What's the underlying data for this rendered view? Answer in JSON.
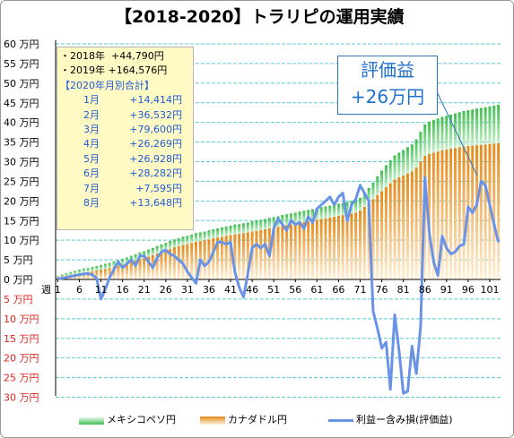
{
  "title": "【2018-2020】トラリピの運用実績",
  "info_box": {
    "line_2018": "・2018年  +44,790円",
    "line_2019": "・2019年 +164,576円",
    "heading": "【2020年月別合計】",
    "months": [
      {
        "label": "1月",
        "value": "+14,414円"
      },
      {
        "label": "2月",
        "value": "+36,532円"
      },
      {
        "label": "3月",
        "value": "+79,600円"
      },
      {
        "label": "4月",
        "value": "+26,269円"
      },
      {
        "label": "5月",
        "value": "+26,928円"
      },
      {
        "label": "6月",
        "value": "+28,282円"
      },
      {
        "label": "7月",
        "value": "+7,595円"
      },
      {
        "label": "8月",
        "value": "+13,648円"
      }
    ]
  },
  "callout": {
    "line1": "評価益",
    "line2": "+26万円"
  },
  "colors": {
    "mxn": "#3dbe4e",
    "cad": "#e58a1a",
    "line": "#6a93e6",
    "negative_label": "#e0201b",
    "grid": "#5ac8d8",
    "callout_text": "#1f6fd0"
  },
  "chart_data": {
    "type": "bar",
    "x_axis_label": "週",
    "x_tick_labels": [
      "1",
      "6",
      "11",
      "16",
      "21",
      "26",
      "31",
      "36",
      "41",
      "46",
      "51",
      "56",
      "61",
      "66",
      "71",
      "76",
      "81",
      "86",
      "91",
      "96",
      "101"
    ],
    "y_tick_labels": [
      "60 万円",
      "55 万円",
      "50 万円",
      "45 万円",
      "40 万円",
      "35 万円",
      "30 万円",
      "25 万円",
      "20 万円",
      "15 万円",
      "10 万円",
      "5 万円",
      "0 万円",
      "5 万円",
      "10 万円",
      "15 万円",
      "20 万円",
      "25 万円",
      "30 万円"
    ],
    "ylim": [
      -30,
      60
    ],
    "y_unit": "万円",
    "grid": true,
    "legend_position": "bottom",
    "x": [
      1,
      2,
      3,
      4,
      5,
      6,
      7,
      8,
      9,
      10,
      11,
      12,
      13,
      14,
      15,
      16,
      17,
      18,
      19,
      20,
      21,
      22,
      23,
      24,
      25,
      26,
      27,
      28,
      29,
      30,
      31,
      32,
      33,
      34,
      35,
      36,
      37,
      38,
      39,
      40,
      41,
      42,
      43,
      44,
      45,
      46,
      47,
      48,
      49,
      50,
      51,
      52,
      53,
      54,
      55,
      56,
      57,
      58,
      59,
      60,
      61,
      62,
      63,
      64,
      65,
      66,
      67,
      68,
      69,
      70,
      71,
      72,
      73,
      74,
      75,
      76,
      77,
      78,
      79,
      80,
      81,
      82,
      83,
      84,
      85,
      86,
      87,
      88,
      89,
      90,
      91,
      92,
      93,
      94,
      95,
      96,
      97,
      98,
      99,
      100,
      101,
      102,
      103
    ],
    "series": [
      {
        "name": "メキシコペソ円",
        "kind": "bar",
        "values": [
          0.3,
          0.5,
          0.6,
          0.7,
          0.8,
          0.9,
          1.0,
          1.0,
          1.1,
          1.1,
          1.2,
          1.3,
          1.3,
          1.4,
          1.4,
          1.5,
          1.5,
          1.6,
          1.6,
          1.7,
          1.7,
          1.8,
          1.8,
          1.9,
          1.9,
          1.9,
          2.0,
          2.0,
          2.0,
          2.1,
          2.1,
          2.1,
          2.2,
          2.2,
          2.2,
          2.3,
          2.3,
          2.3,
          2.4,
          2.4,
          2.4,
          2.5,
          2.5,
          2.5,
          2.5,
          2.6,
          2.6,
          2.6,
          2.6,
          2.7,
          2.7,
          2.7,
          2.8,
          2.8,
          2.8,
          2.8,
          2.9,
          2.9,
          2.9,
          2.9,
          3.0,
          3.0,
          3.0,
          3.0,
          3.1,
          3.1,
          3.1,
          3.1,
          3.2,
          3.2,
          3.3,
          3.5,
          3.8,
          4.2,
          4.8,
          5.2,
          5.6,
          5.9,
          6.1,
          6.3,
          6.5,
          6.7,
          6.9,
          7.2,
          7.6,
          8.0,
          8.2,
          8.3,
          8.4,
          8.5,
          8.6,
          8.7,
          8.8,
          8.9,
          9.0,
          9.1,
          9.2,
          9.3,
          9.4,
          9.5,
          9.6,
          9.7,
          9.8
        ]
      },
      {
        "name": "カナダドル円",
        "kind": "bar",
        "values": [
          0.5,
          0.8,
          1.0,
          1.2,
          1.4,
          1.6,
          1.8,
          1.9,
          2.1,
          2.3,
          2.5,
          2.7,
          2.9,
          3.2,
          3.5,
          3.8,
          4.1,
          4.4,
          4.8,
          5.2,
          5.5,
          5.8,
          6.2,
          6.6,
          7.0,
          7.4,
          7.8,
          8.2,
          8.5,
          8.8,
          9.0,
          9.3,
          9.6,
          9.8,
          10.0,
          10.2,
          10.5,
          10.7,
          10.9,
          11.1,
          11.3,
          11.5,
          11.6,
          11.8,
          12.0,
          12.2,
          12.4,
          12.6,
          12.8,
          13.0,
          13.2,
          13.4,
          13.6,
          13.8,
          14.0,
          14.2,
          14.4,
          14.6,
          14.8,
          15.0,
          15.2,
          15.4,
          15.6,
          15.8,
          16.0,
          16.2,
          16.4,
          16.6,
          16.8,
          17.0,
          17.5,
          18.5,
          19.5,
          20.5,
          21.5,
          22.5,
          23.5,
          24.5,
          25.5,
          26.0,
          26.5,
          27.0,
          27.5,
          28.5,
          30.0,
          31.5,
          32.0,
          32.3,
          32.6,
          32.9,
          33.1,
          33.3,
          33.5,
          33.7,
          33.9,
          34.0,
          34.1,
          34.2,
          34.3,
          34.4,
          34.5,
          34.6,
          34.7
        ]
      },
      {
        "name": "利益ー含み損(評価益)",
        "kind": "line",
        "values": [
          0.2,
          0.3,
          0.5,
          0.8,
          1.0,
          1.2,
          1.4,
          1.5,
          1.2,
          0.3,
          -5.0,
          -2.5,
          0.5,
          2.5,
          4.5,
          3.0,
          4.0,
          5.0,
          3.5,
          6.0,
          6.0,
          4.5,
          3.0,
          5.5,
          7.0,
          7.5,
          6.5,
          6.0,
          5.0,
          4.0,
          2.0,
          0.5,
          -1.0,
          5.0,
          3.5,
          4.5,
          7.0,
          9.5,
          9.5,
          9.0,
          9.5,
          2.0,
          -2.0,
          -4.5,
          1.5,
          8.0,
          9.0,
          8.0,
          9.0,
          6.0,
          13.0,
          15.5,
          14.0,
          12.5,
          15.0,
          14.0,
          14.5,
          13.0,
          16.0,
          14.5,
          18.0,
          19.0,
          20.0,
          21.0,
          19.0,
          21.0,
          22.0,
          15.0,
          19.0,
          20.5,
          24.0,
          22.0,
          20.0,
          -8.0,
          -12.5,
          -17.5,
          -16.0,
          -28.0,
          -9.0,
          -18.0,
          -29.0,
          -28.5,
          -17.0,
          -24.0,
          -12.0,
          26.0,
          12.0,
          4.5,
          1.0,
          11.0,
          8.0,
          6.5,
          7.0,
          8.5,
          9.0,
          18.5,
          17.0,
          19.0,
          25.0,
          24.0,
          19.0,
          14.0,
          9.5
        ]
      }
    ]
  }
}
